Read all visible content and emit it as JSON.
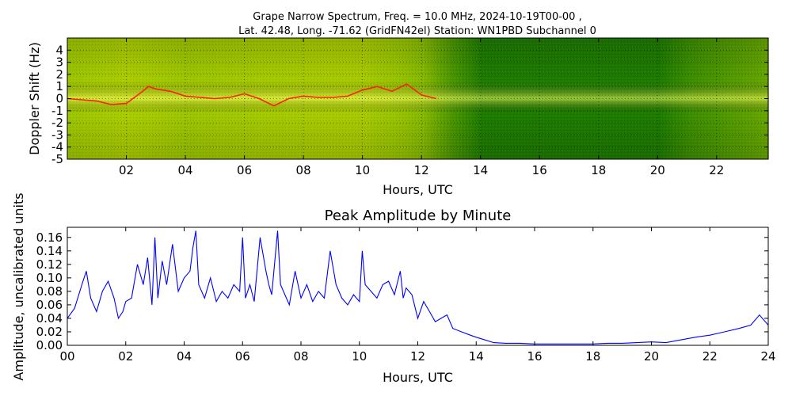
{
  "figure": {
    "title_line1": "Grape Narrow Spectrum, Freq. = 10.0 MHz, 2024-10-19T00-00 ,",
    "title_line2": "Lat.  42.48, Long. -71.62 (GridFN42el) Station: WN1PBD Subchannel 0"
  },
  "colors": {
    "background": "#ffffff",
    "spectrogram_low": "#007000",
    "spectrogram_mid": "#9ccc00",
    "spectrogram_high": "#ffff00",
    "doppler_trace": "#ff2000",
    "amplitude_line": "#0000ff"
  },
  "chart_data": [
    {
      "type": "heatmap",
      "title": "",
      "xlabel": "Hours, UTC",
      "ylabel": "Doppler Shift (Hz)",
      "xlim": [
        0,
        23.75
      ],
      "ylim": [
        -5,
        5
      ],
      "x_ticks": [
        2,
        4,
        6,
        8,
        10,
        12,
        14,
        16,
        18,
        20,
        22
      ],
      "x_tick_labels": [
        "02",
        "04",
        "06",
        "08",
        "10",
        "12",
        "14",
        "16",
        "18",
        "20",
        "22"
      ],
      "y_ticks": [
        -5,
        -4,
        -3,
        -2,
        -1,
        0,
        1,
        2,
        3,
        4
      ],
      "y_tick_labels": [
        "-5",
        "-4",
        "-3",
        "-2",
        "-1",
        "0",
        "1",
        "2",
        "3",
        "4"
      ],
      "grid": true,
      "intensity_by_hour": [
        {
          "hour": 0,
          "level": 0.55
        },
        {
          "hour": 2,
          "level": 0.62
        },
        {
          "hour": 4,
          "level": 0.55
        },
        {
          "hour": 6,
          "level": 0.58
        },
        {
          "hour": 8,
          "level": 0.6
        },
        {
          "hour": 10,
          "level": 0.6
        },
        {
          "hour": 12,
          "level": 0.45
        },
        {
          "hour": 13,
          "level": 0.25
        },
        {
          "hour": 14,
          "level": 0.1
        },
        {
          "hour": 20,
          "level": 0.1
        },
        {
          "hour": 21,
          "level": 0.2
        },
        {
          "hour": 23.75,
          "level": 0.35
        }
      ],
      "peak_doppler_trace": {
        "x": [
          0.0,
          0.5,
          1.0,
          1.5,
          2.0,
          2.5,
          2.75,
          3.0,
          3.5,
          4.0,
          4.5,
          5.0,
          5.5,
          6.0,
          6.5,
          7.0,
          7.5,
          8.0,
          8.5,
          9.0,
          9.5,
          10.0,
          10.5,
          11.0,
          11.5,
          12.0,
          12.5
        ],
        "y": [
          0.0,
          -0.1,
          -0.2,
          -0.5,
          -0.4,
          0.5,
          1.0,
          0.8,
          0.6,
          0.2,
          0.1,
          0.0,
          0.1,
          0.4,
          0.0,
          -0.6,
          0.0,
          0.2,
          0.1,
          0.1,
          0.2,
          0.7,
          1.0,
          0.6,
          1.2,
          0.3,
          0.0
        ]
      }
    },
    {
      "type": "line",
      "title": "Peak Amplitude by Minute",
      "xlabel": "Hours, UTC",
      "ylabel": "Amplitude, uncalibrated units",
      "xlim": [
        0,
        24
      ],
      "ylim": [
        0,
        0.175
      ],
      "x_ticks": [
        0,
        2,
        4,
        6,
        8,
        10,
        12,
        14,
        16,
        18,
        20,
        22,
        24
      ],
      "x_tick_labels": [
        "00",
        "02",
        "04",
        "06",
        "08",
        "10",
        "12",
        "14",
        "16",
        "18",
        "20",
        "22",
        "24"
      ],
      "y_ticks": [
        0,
        0.02,
        0.04,
        0.06,
        0.08,
        0.1,
        0.12,
        0.14,
        0.16
      ],
      "y_tick_labels": [
        "0.00",
        "0.02",
        "0.04",
        "0.06",
        "0.08",
        "0.10",
        "0.12",
        "0.14",
        "0.16"
      ],
      "grid": false,
      "series": [
        {
          "x": [
            0,
            0.25,
            0.5,
            0.65,
            0.8,
            1.0,
            1.2,
            1.4,
            1.6,
            1.75,
            1.9,
            2.0,
            2.2,
            2.4,
            2.6,
            2.75,
            2.9,
            3.0,
            3.1,
            3.25,
            3.4,
            3.6,
            3.8,
            4.0,
            4.2,
            4.3,
            4.4,
            4.5,
            4.7,
            4.9,
            5.1,
            5.3,
            5.5,
            5.7,
            5.9,
            6.0,
            6.1,
            6.25,
            6.4,
            6.6,
            6.8,
            6.9,
            7.0,
            7.2,
            7.3,
            7.4,
            7.6,
            7.8,
            8.0,
            8.2,
            8.4,
            8.6,
            8.8,
            9.0,
            9.2,
            9.4,
            9.6,
            9.8,
            10.0,
            10.1,
            10.2,
            10.4,
            10.6,
            10.8,
            11.0,
            11.2,
            11.4,
            11.5,
            11.6,
            11.8,
            12.0,
            12.2,
            12.4,
            12.6,
            12.8,
            13.0,
            13.2,
            13.5,
            13.8,
            14.0,
            14.3,
            14.6,
            15.0,
            15.5,
            16.0,
            16.5,
            17.0,
            17.5,
            18.0,
            18.5,
            19.0,
            19.5,
            20.0,
            20.5,
            21.0,
            21.5,
            22.0,
            22.5,
            23.0,
            23.4,
            23.7,
            24.0
          ],
          "values": [
            0.04,
            0.055,
            0.09,
            0.11,
            0.07,
            0.05,
            0.08,
            0.095,
            0.07,
            0.04,
            0.05,
            0.065,
            0.07,
            0.12,
            0.09,
            0.13,
            0.06,
            0.16,
            0.07,
            0.125,
            0.09,
            0.15,
            0.08,
            0.1,
            0.11,
            0.145,
            0.17,
            0.09,
            0.07,
            0.1,
            0.065,
            0.08,
            0.07,
            0.09,
            0.08,
            0.16,
            0.07,
            0.09,
            0.065,
            0.16,
            0.11,
            0.09,
            0.075,
            0.17,
            0.09,
            0.08,
            0.06,
            0.11,
            0.07,
            0.09,
            0.065,
            0.08,
            0.07,
            0.14,
            0.09,
            0.07,
            0.06,
            0.075,
            0.065,
            0.14,
            0.09,
            0.08,
            0.07,
            0.09,
            0.095,
            0.075,
            0.11,
            0.07,
            0.085,
            0.075,
            0.04,
            0.065,
            0.05,
            0.035,
            0.04,
            0.045,
            0.025,
            0.02,
            0.015,
            0.012,
            0.008,
            0.004,
            0.003,
            0.003,
            0.002,
            0.002,
            0.002,
            0.002,
            0.002,
            0.003,
            0.003,
            0.004,
            0.005,
            0.004,
            0.008,
            0.012,
            0.015,
            0.02,
            0.025,
            0.03,
            0.045,
            0.03
          ]
        }
      ]
    }
  ]
}
